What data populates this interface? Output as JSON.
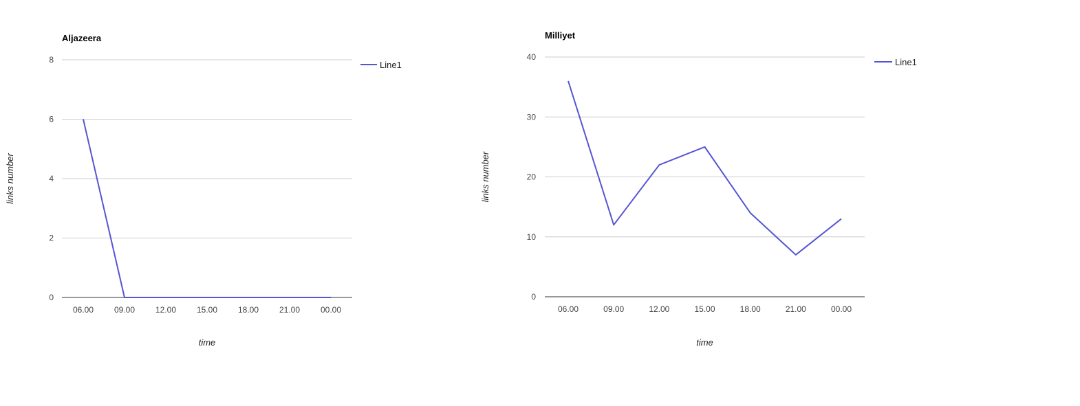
{
  "colors": {
    "series": "#5555d3",
    "grid": "#cccccc",
    "baseline": "#333333"
  },
  "chart_data": [
    {
      "type": "line",
      "title": "Aljazeera",
      "xlabel": "time",
      "ylabel": "links number",
      "categories": [
        "06.00",
        "09.00",
        "12.00",
        "15.00",
        "18.00",
        "21.00",
        "00.00"
      ],
      "series": [
        {
          "name": "Line1",
          "values": [
            6,
            0,
            0,
            0,
            0,
            0,
            0
          ]
        }
      ],
      "ylim": [
        0,
        8
      ],
      "yticks": [
        0,
        2,
        4,
        6,
        8
      ],
      "grid": true,
      "legend": "right"
    },
    {
      "type": "line",
      "title": "Milliyet",
      "xlabel": "time",
      "ylabel": "links number",
      "categories": [
        "06.00",
        "09.00",
        "12.00",
        "15.00",
        "18.00",
        "21.00",
        "00.00"
      ],
      "series": [
        {
          "name": "Line1",
          "values": [
            36,
            12,
            22,
            25,
            14,
            7,
            13
          ]
        }
      ],
      "ylim": [
        0,
        40
      ],
      "yticks": [
        0,
        10,
        20,
        30,
        40
      ],
      "grid": true,
      "legend": "right"
    }
  ]
}
